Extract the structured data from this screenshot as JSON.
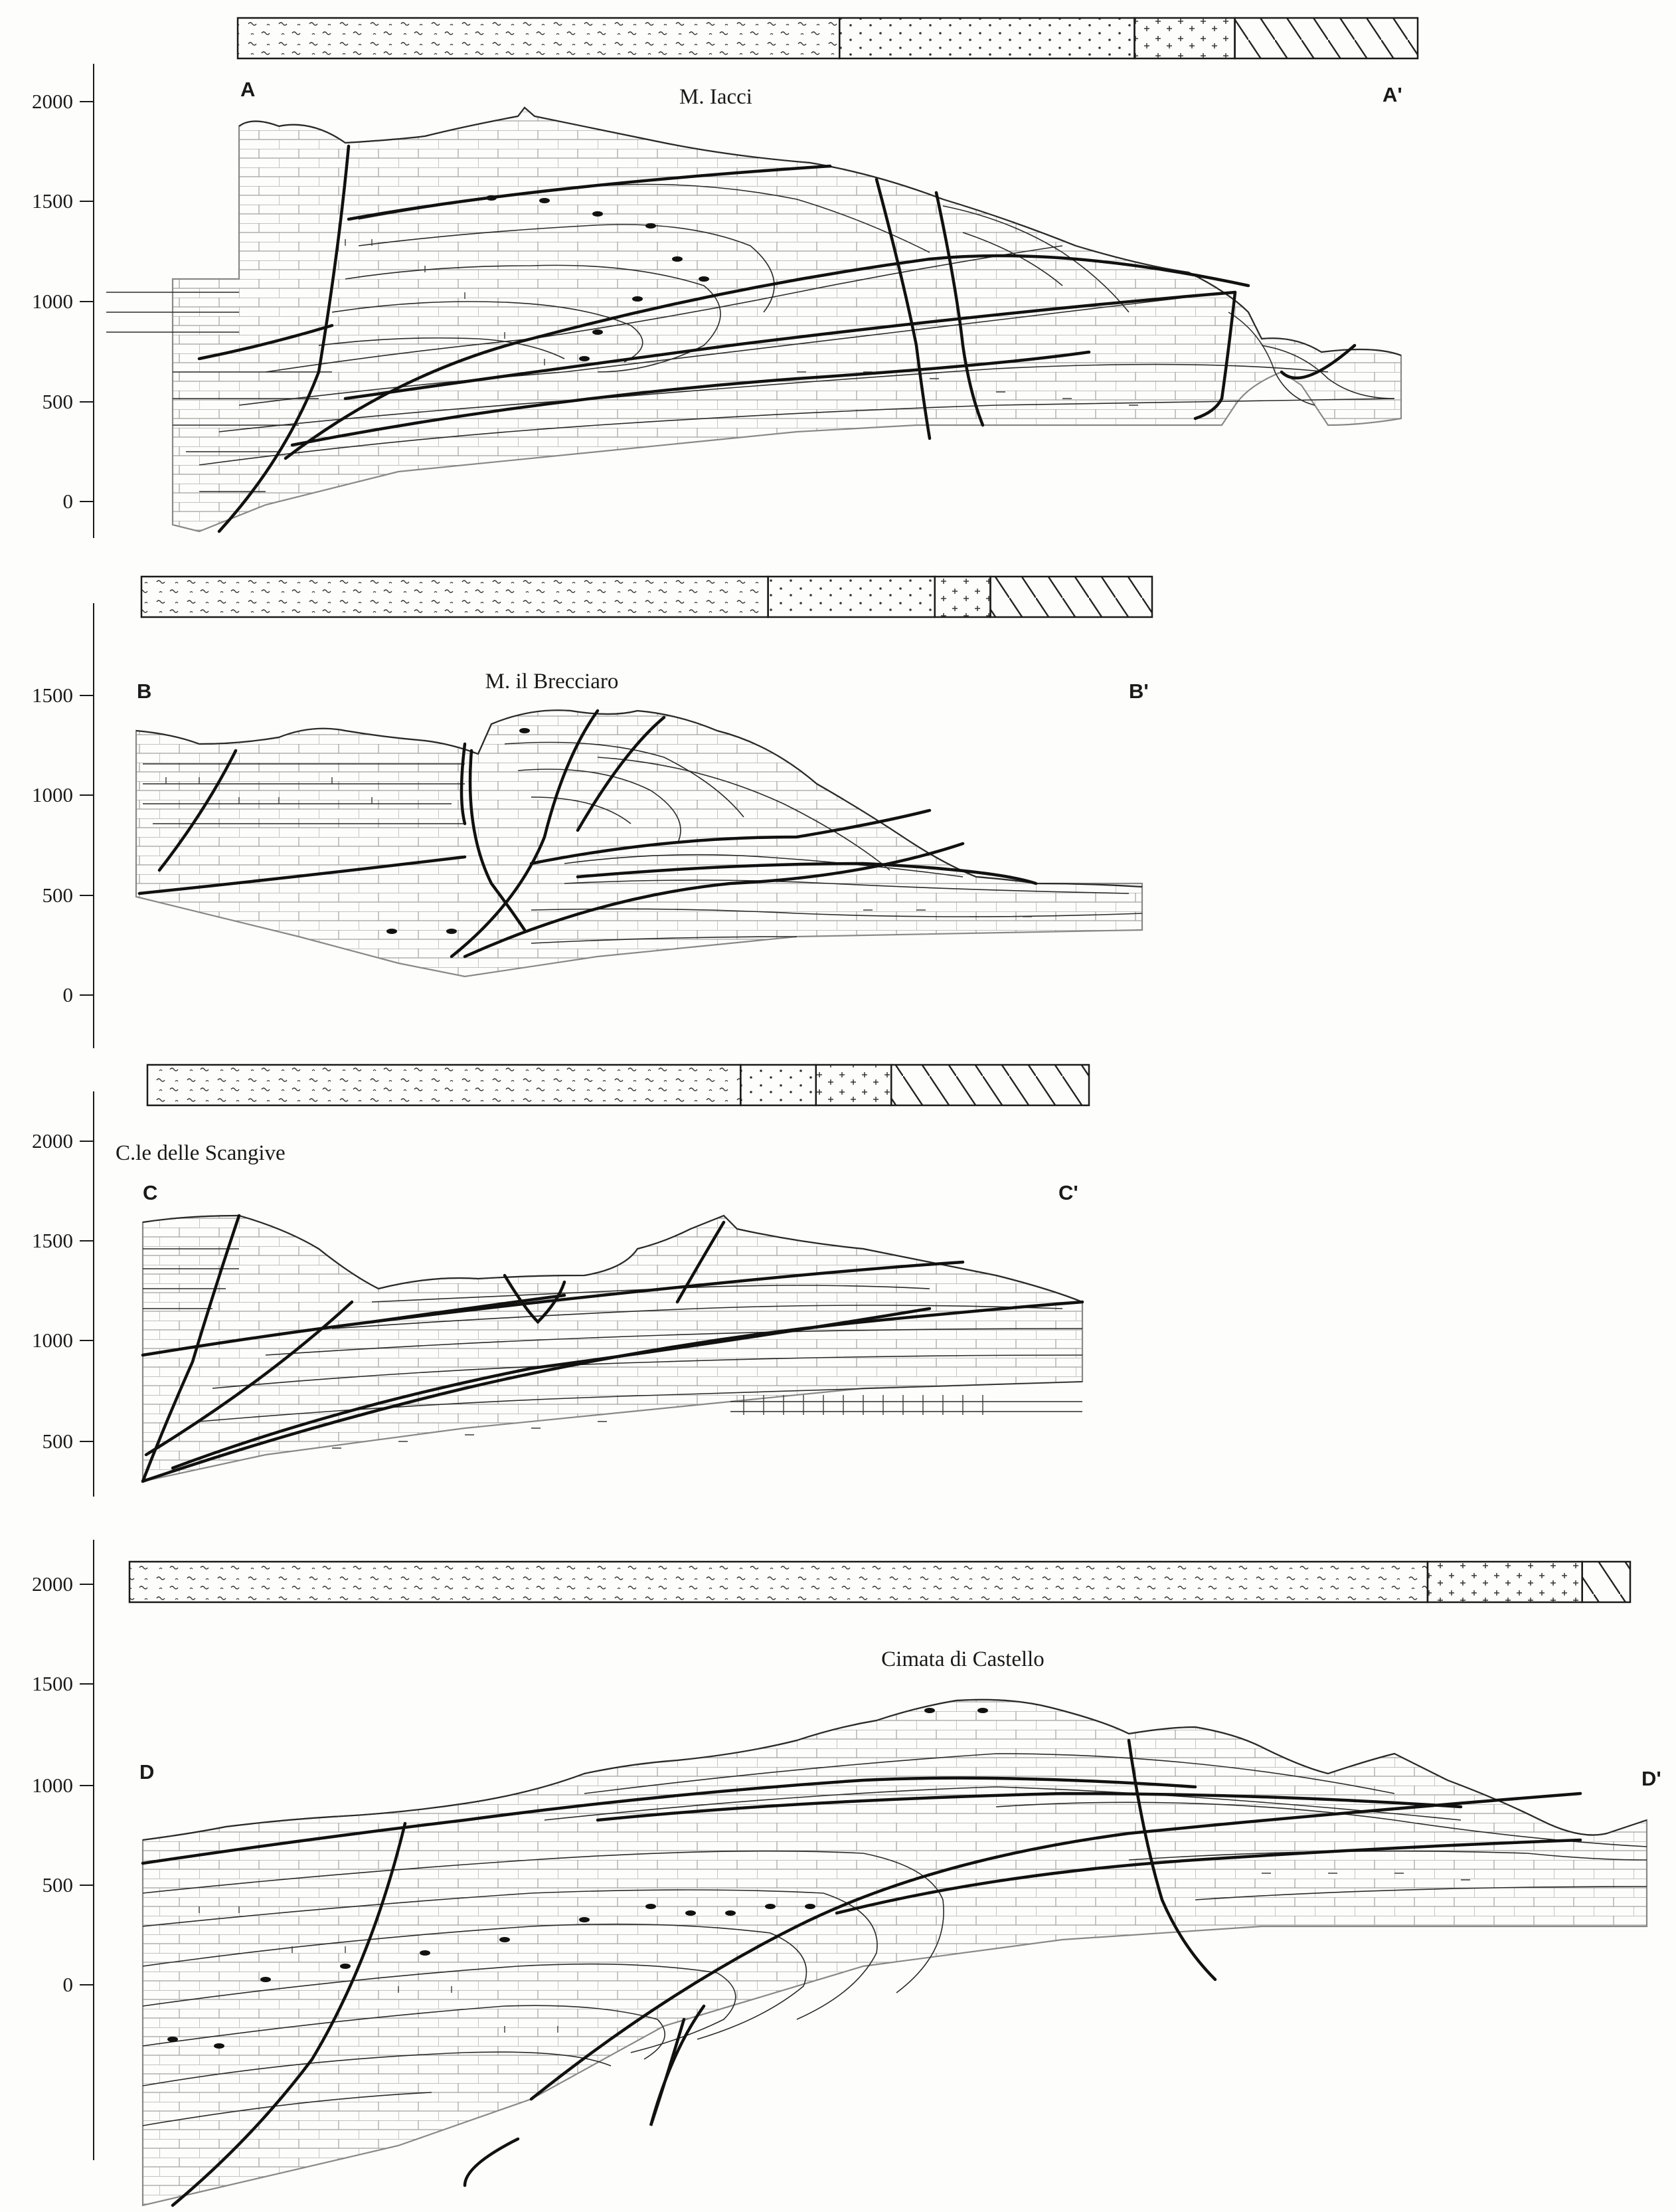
{
  "sections": [
    {
      "id": "A",
      "start_label": "A",
      "end_label": "A'",
      "peak_label": "M. Iacci",
      "y_ticks": [
        "2000",
        "1500",
        "1000",
        "500",
        "0"
      ],
      "bar_fraction": [
        0.51,
        0.25,
        0.085,
        0.155
      ]
    },
    {
      "id": "B",
      "start_label": "B",
      "end_label": "B'",
      "peak_label": "M. il Brecciaro",
      "y_ticks": [
        "1500",
        "1000",
        "500",
        "0"
      ],
      "bar_fraction": [
        0.62,
        0.165,
        0.055,
        0.16
      ]
    },
    {
      "id": "C",
      "start_label": "C",
      "end_label": "C'",
      "peak_label": "C.le delle Scangive",
      "y_ticks": [
        "2000",
        "1500",
        "1000",
        "500"
      ],
      "bar_fraction": [
        0.63,
        0.08,
        0.08,
        0.21
      ]
    },
    {
      "id": "D",
      "start_label": "D",
      "end_label": "D'",
      "peak_label": "Cimata di Castello",
      "y_ticks": [
        "2000",
        "1500",
        "1000",
        "500",
        "0"
      ],
      "bar_fraction": [
        0.865,
        0.103,
        0.032
      ]
    }
  ],
  "legend_patterns": [
    "wavy",
    "dotted",
    "cross",
    "hatched"
  ]
}
